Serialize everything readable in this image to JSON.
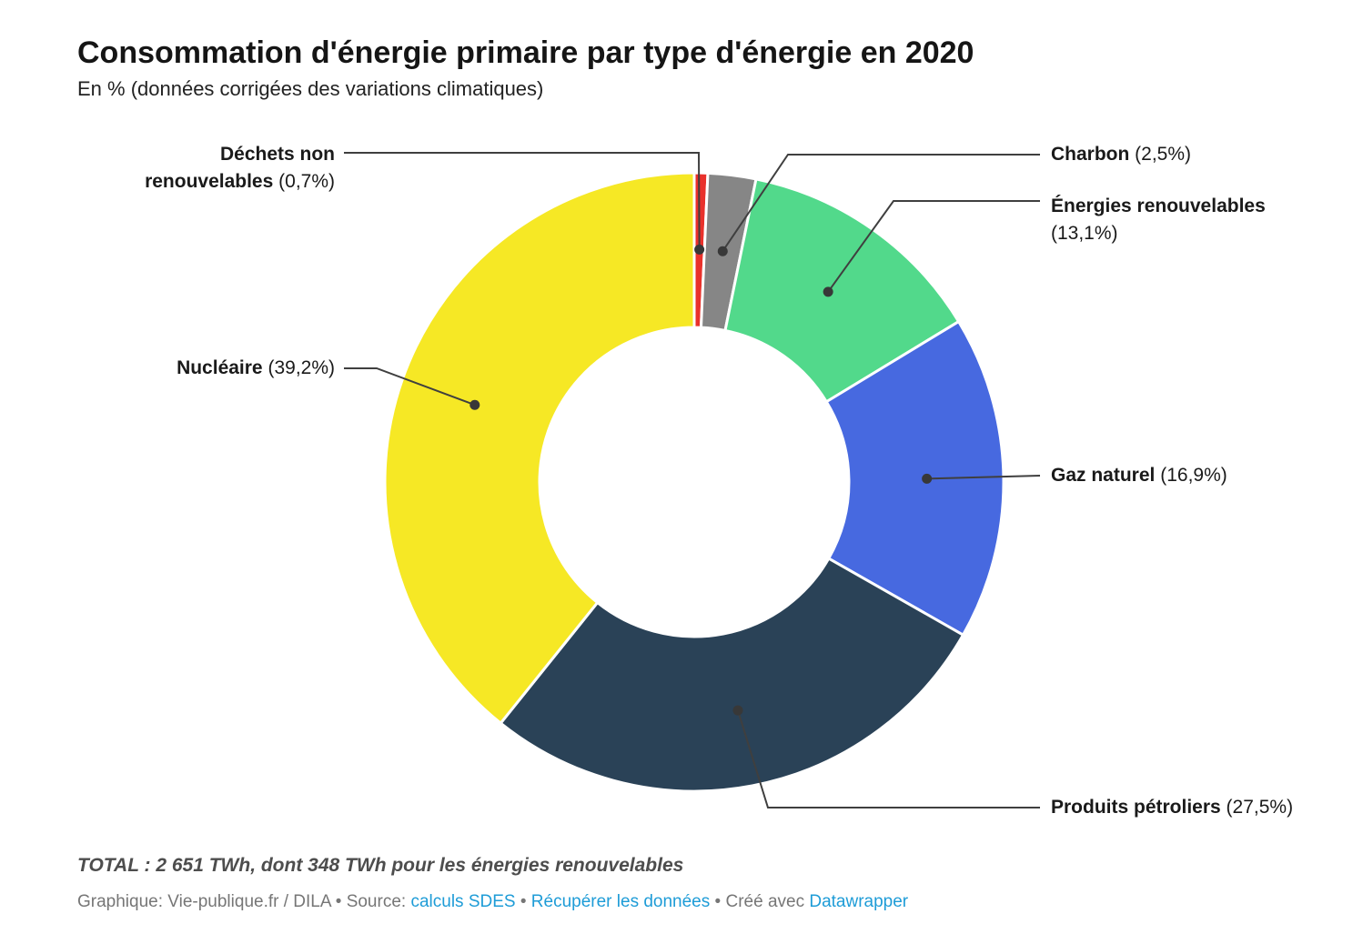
{
  "header": {
    "title": "Consommation d'énergie primaire par type d'énergie en 2020",
    "subtitle": "En % (données corrigées des variations climatiques)"
  },
  "chart_data": {
    "type": "pie",
    "variant": "donut",
    "title": "Consommation d'énergie primaire par type d'énergie en 2020",
    "subtitle": "En % (données corrigées des variations climatiques)",
    "unit": "%",
    "start_angle_deg": 0,
    "direction": "clockwise",
    "inner_radius_ratio": 0.5,
    "slices": [
      {
        "id": "dechets-non-renouvelables",
        "label": "Déchets non renouvelables",
        "label_line1": "Déchets non",
        "label_line2": "renouvelables",
        "pct": "(0,7%)",
        "value": 0.7,
        "color": "#e9312b"
      },
      {
        "id": "charbon",
        "label": "Charbon",
        "pct": "(2,5%)",
        "value": 2.5,
        "color": "#868686"
      },
      {
        "id": "energies-renouvelables",
        "label": "Énergies renouvelables",
        "pct": "(13,1%)",
        "value": 13.1,
        "color": "#52d98b"
      },
      {
        "id": "gaz-naturel",
        "label": "Gaz naturel",
        "pct": "(16,9%)",
        "value": 16.9,
        "color": "#4769e0"
      },
      {
        "id": "produits-petroliers",
        "label": "Produits pétroliers",
        "pct": "(27,5%)",
        "value": 27.5,
        "color": "#2a4257"
      },
      {
        "id": "nucleaire",
        "label": "Nucléaire",
        "pct": "(39,2%)",
        "value": 39.2,
        "color": "#f6e825"
      }
    ],
    "annotation": "TOTAL : 2 651 TWh, dont 348 TWh pour les énergies renouvelables",
    "legend_position": "callout-labels",
    "colors": {
      "connector": "#3f3f3f",
      "slice_gap": "#ffffff",
      "link_blue": "#1e9cd7"
    }
  },
  "footer": {
    "total": "TOTAL : 2 651 TWh, dont 348 TWh pour les énergies renouvelables",
    "byline_prefix": "Graphique: Vie-publique.fr / DILA • Source: ",
    "source_link": "calculs SDES",
    "sep1": " • ",
    "data_link": "Récupérer les données",
    "sep2": " • ",
    "created_prefix": "Créé avec ",
    "tool_link": "Datawrapper"
  }
}
